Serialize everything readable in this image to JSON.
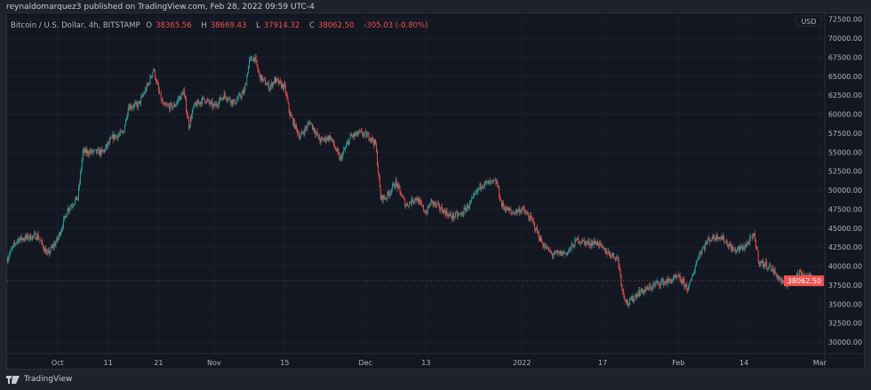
{
  "header": {
    "published": "reynaldomarquez3 published on TradingView.com, Feb 28, 2022 09:59 UTC-4"
  },
  "legend": {
    "symbol": "Bitcoin / U.S. Dollar, 4h, BITSTAMP",
    "o_label": "O",
    "o": "38365.56",
    "h_label": "H",
    "h": "38669.43",
    "l_label": "L",
    "l": "37914.32",
    "c_label": "C",
    "c": "38062.50",
    "change": "-305.03 (-0.80%)"
  },
  "footer": {
    "brand": "TradingView"
  },
  "colors": {
    "up": "#26a69a",
    "down": "#ef5350",
    "background": "#131722",
    "grid": "#1e222d"
  },
  "chart_data": {
    "type": "candlestick",
    "interval": "4h",
    "currency_label": "USD",
    "last_price": "38062.50",
    "ylim": [
      29000,
      72500
    ],
    "y_ticks": [
      "72500.00",
      "70000.00",
      "67500.00",
      "65000.00",
      "62500.00",
      "60000.00",
      "57500.00",
      "55000.00",
      "52500.00",
      "50000.00",
      "47500.00",
      "45000.00",
      "42500.00",
      "40000.00",
      "37500.00",
      "35000.00",
      "32500.00",
      "30000.00"
    ],
    "x_ticks": [
      {
        "label": "Oct",
        "date": "2021-10-01"
      },
      {
        "label": "11",
        "date": "2021-10-11"
      },
      {
        "label": "21",
        "date": "2021-10-21"
      },
      {
        "label": "Nov",
        "date": "2021-11-01"
      },
      {
        "label": "15",
        "date": "2021-11-15"
      },
      {
        "label": "Dec",
        "date": "2021-12-01"
      },
      {
        "label": "13",
        "date": "2021-12-13"
      },
      {
        "label": "2022",
        "date": "2022-01-01"
      },
      {
        "label": "17",
        "date": "2022-01-17"
      },
      {
        "label": "Feb",
        "date": "2022-02-01"
      },
      {
        "label": "14",
        "date": "2022-02-14"
      },
      {
        "label": "Mar",
        "date": "2022-03-01"
      }
    ],
    "xlim": [
      "2021-09-21",
      "2022-03-02"
    ],
    "approx_close_path": [
      [
        "2021-09-21",
        41000
      ],
      [
        "2021-09-23",
        43500
      ],
      [
        "2021-09-27",
        44000
      ],
      [
        "2021-09-29",
        41500
      ],
      [
        "2021-10-01",
        43500
      ],
      [
        "2021-10-03",
        47500
      ],
      [
        "2021-10-05",
        49000
      ],
      [
        "2021-10-06",
        55000
      ],
      [
        "2021-10-10",
        55000
      ],
      [
        "2021-10-12",
        57000
      ],
      [
        "2021-10-14",
        57500
      ],
      [
        "2021-10-15",
        61000
      ],
      [
        "2021-10-17",
        61200
      ],
      [
        "2021-10-19",
        64000
      ],
      [
        "2021-10-20",
        66000
      ],
      [
        "2021-10-21",
        63000
      ],
      [
        "2021-10-22",
        61000
      ],
      [
        "2021-10-24",
        61000
      ],
      [
        "2021-10-26",
        63000
      ],
      [
        "2021-10-27",
        58500
      ],
      [
        "2021-10-28",
        61000
      ],
      [
        "2021-10-30",
        62000
      ],
      [
        "2021-11-01",
        61000
      ],
      [
        "2021-11-03",
        62500
      ],
      [
        "2021-11-05",
        61500
      ],
      [
        "2021-11-07",
        63000
      ],
      [
        "2021-11-08",
        67000
      ],
      [
        "2021-11-09",
        67500
      ],
      [
        "2021-11-10",
        65000
      ],
      [
        "2021-11-12",
        63500
      ],
      [
        "2021-11-13",
        64500
      ],
      [
        "2021-11-15",
        63500
      ],
      [
        "2021-11-16",
        60000
      ],
      [
        "2021-11-18",
        57000
      ],
      [
        "2021-11-20",
        59000
      ],
      [
        "2021-11-22",
        56500
      ],
      [
        "2021-11-24",
        57000
      ],
      [
        "2021-11-26",
        54000
      ],
      [
        "2021-11-28",
        57000
      ],
      [
        "2021-11-30",
        57500
      ],
      [
        "2021-12-02",
        57000
      ],
      [
        "2021-12-03",
        56000
      ],
      [
        "2021-12-04",
        49000
      ],
      [
        "2021-12-05",
        49000
      ],
      [
        "2021-12-07",
        51000
      ],
      [
        "2021-12-09",
        48000
      ],
      [
        "2021-12-11",
        49000
      ],
      [
        "2021-12-13",
        47000
      ],
      [
        "2021-12-14",
        48500
      ],
      [
        "2021-12-16",
        47500
      ],
      [
        "2021-12-18",
        46500
      ],
      [
        "2021-12-20",
        46800
      ],
      [
        "2021-12-22",
        48500
      ],
      [
        "2021-12-24",
        50800
      ],
      [
        "2021-12-27",
        51000
      ],
      [
        "2021-12-28",
        48000
      ],
      [
        "2021-12-30",
        47000
      ],
      [
        "2022-01-01",
        47500
      ],
      [
        "2022-01-03",
        46000
      ],
      [
        "2022-01-05",
        43000
      ],
      [
        "2022-01-07",
        41500
      ],
      [
        "2022-01-10",
        41800
      ],
      [
        "2022-01-12",
        43500
      ],
      [
        "2022-01-14",
        43000
      ],
      [
        "2022-01-16",
        43100
      ],
      [
        "2022-01-17",
        42200
      ],
      [
        "2022-01-20",
        41000
      ],
      [
        "2022-01-21",
        36500
      ],
      [
        "2022-01-22",
        35000
      ],
      [
        "2022-01-24",
        36500
      ],
      [
        "2022-01-26",
        37000
      ],
      [
        "2022-01-28",
        37800
      ],
      [
        "2022-01-30",
        38000
      ],
      [
        "2022-02-01",
        38500
      ],
      [
        "2022-02-03",
        37000
      ],
      [
        "2022-02-05",
        41500
      ],
      [
        "2022-02-07",
        43500
      ],
      [
        "2022-02-09",
        44000
      ],
      [
        "2022-02-10",
        43500
      ],
      [
        "2022-02-12",
        42000
      ],
      [
        "2022-02-14",
        42500
      ],
      [
        "2022-02-16",
        44000
      ],
      [
        "2022-02-17",
        40500
      ],
      [
        "2022-02-19",
        40000
      ],
      [
        "2022-02-22",
        37500
      ],
      [
        "2022-02-23",
        38000
      ],
      [
        "2022-02-24",
        38500
      ],
      [
        "2022-02-25",
        39200
      ],
      [
        "2022-02-27",
        38500
      ],
      [
        "2022-02-28",
        38062.5
      ]
    ]
  }
}
